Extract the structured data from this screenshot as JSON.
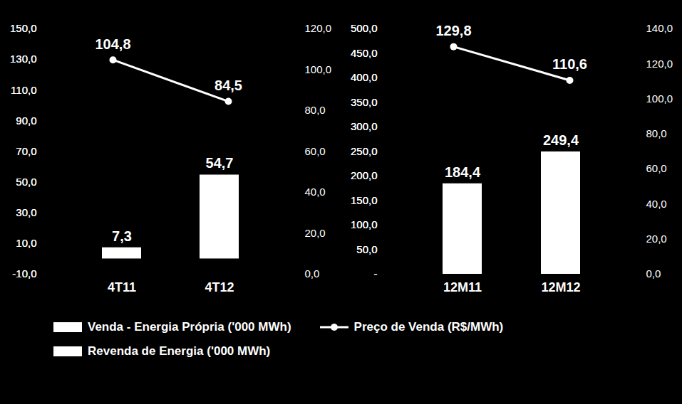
{
  "chart_data": [
    {
      "type": "bar",
      "categories": [
        "4T11",
        "4T12"
      ],
      "series": [
        {
          "name": "Venda - Energia Própria ('000 MWh)",
          "type": "bar",
          "color": "#ffffff",
          "values": [
            7.3,
            54.7
          ],
          "value_labels": [
            "7,3",
            "54,7"
          ]
        },
        {
          "name": "Preço de Venda (R$/MWh)",
          "type": "line",
          "color": "#ffffff",
          "marker": "circle",
          "axis": "y2",
          "values": [
            104.8,
            84.5
          ],
          "value_labels": [
            "104,8",
            "84,5"
          ]
        }
      ],
      "ylim": [
        -10,
        150
      ],
      "yticks": [
        {
          "value": -10,
          "label": "-10,0"
        },
        {
          "value": 10,
          "label": "10,0"
        },
        {
          "value": 30,
          "label": "30,0"
        },
        {
          "value": 50,
          "label": "50,0"
        },
        {
          "value": 70,
          "label": "70,0"
        },
        {
          "value": 90,
          "label": "90,0"
        },
        {
          "value": 110,
          "label": "110,0"
        },
        {
          "value": 130,
          "label": "130,0"
        },
        {
          "value": 150,
          "label": "150,0"
        }
      ],
      "y2lim": [
        0,
        120
      ],
      "y2ticks": [
        {
          "value": 0,
          "label": "0,0"
        },
        {
          "value": 20,
          "label": "20,0"
        },
        {
          "value": 40,
          "label": "40,0"
        },
        {
          "value": 60,
          "label": "60,0"
        },
        {
          "value": 80,
          "label": "80,0"
        },
        {
          "value": 100,
          "label": "100,0"
        },
        {
          "value": 120,
          "label": "120,0"
        }
      ],
      "data_labels": true,
      "legend": "bottom"
    },
    {
      "type": "bar",
      "categories": [
        "12M11",
        "12M12"
      ],
      "series": [
        {
          "name": "Revenda de Energia ('000 MWh)",
          "type": "bar",
          "color": "#ffffff",
          "values": [
            184.4,
            249.4
          ],
          "value_labels": [
            "184,4",
            "249,4"
          ]
        },
        {
          "name": "Preço de Venda (R$/MWh)",
          "type": "line",
          "color": "#ffffff",
          "marker": "circle",
          "axis": "y2",
          "values": [
            129.8,
            110.6
          ],
          "value_labels": [
            "129,8",
            "110,6"
          ]
        }
      ],
      "ylim": [
        0,
        500
      ],
      "yticks": [
        {
          "value": 0,
          "label": "-"
        },
        {
          "value": 50,
          "label": "50,0"
        },
        {
          "value": 100,
          "label": "100,0"
        },
        {
          "value": 150,
          "label": "150,0"
        },
        {
          "value": 200,
          "label": "200,0"
        },
        {
          "value": 250,
          "label": "250,0"
        },
        {
          "value": 300,
          "label": "300,0"
        },
        {
          "value": 350,
          "label": "350,0"
        },
        {
          "value": 400,
          "label": "400,0"
        },
        {
          "value": 450,
          "label": "450,0"
        },
        {
          "value": 500,
          "label": "500,0"
        }
      ],
      "y2lim": [
        0,
        140
      ],
      "y2ticks": [
        {
          "value": 0,
          "label": "0,0"
        },
        {
          "value": 20,
          "label": "20,0"
        },
        {
          "value": 40,
          "label": "40,0"
        },
        {
          "value": 60,
          "label": "60,0"
        },
        {
          "value": 80,
          "label": "80,0"
        },
        {
          "value": 100,
          "label": "100,0"
        },
        {
          "value": 120,
          "label": "120,0"
        },
        {
          "value": 140,
          "label": "140,0"
        }
      ],
      "data_labels": true,
      "legend": "bottom"
    }
  ]
}
